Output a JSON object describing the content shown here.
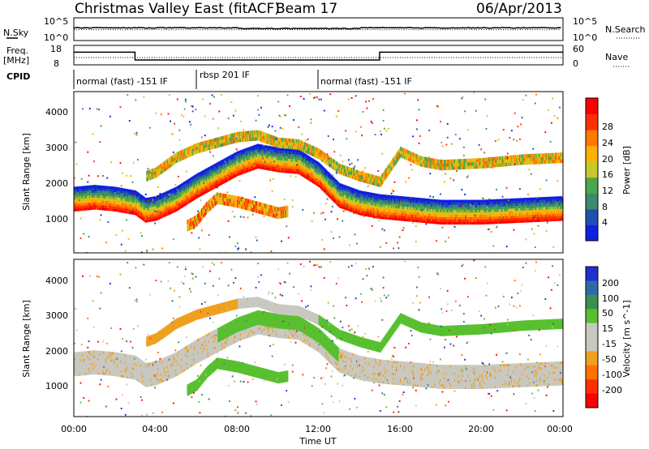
{
  "header": {
    "title": "Christmas Valley East (fitACF)",
    "beam": "Beam 17",
    "date": "06/Apr/2013"
  },
  "nsky_panel": {
    "left_label": "N.Sky",
    "right_label": "N.Search",
    "left_ticks": [
      "10^5",
      "10^0"
    ],
    "right_ticks": [
      "10^5",
      "10^0"
    ]
  },
  "freq_panel": {
    "left_label_1": "Freq.",
    "left_label_2": "[MHz]",
    "right_label": "Nave",
    "left_ticks": [
      "18",
      "8"
    ],
    "right_ticks": [
      "60",
      "0"
    ]
  },
  "cpid": {
    "label": "CPID",
    "segments": [
      {
        "text": "normal (fast) -151 IF",
        "start_hour": 0,
        "end_hour": 6
      },
      {
        "text": "rbsp 201 IF",
        "start_hour": 6,
        "end_hour": 12
      },
      {
        "text": "normal (fast) -151 IF",
        "start_hour": 12,
        "end_hour": 24
      }
    ]
  },
  "axes": {
    "ylabel": "Slant Range [km]",
    "xlabel": "Time UT",
    "y_ticks": [
      "1000",
      "2000",
      "3000",
      "4000"
    ],
    "x_ticks": [
      "00:00",
      "04:00",
      "08:00",
      "12:00",
      "16:00",
      "20:00",
      "00:00"
    ]
  },
  "power_colorbar": {
    "label": "Power [dB]",
    "ticks": [
      "4",
      "8",
      "12",
      "16",
      "20",
      "24",
      "28"
    ],
    "colors": [
      "#1020e0",
      "#2050b0",
      "#3a8a70",
      "#4ca64c",
      "#c8c828",
      "#ffb000",
      "#ff7800",
      "#ff3000",
      "#ff0000"
    ]
  },
  "velocity_colorbar": {
    "label": "Velocity [m s^-1]",
    "ticks": [
      "200",
      "100",
      "50",
      "15",
      "-15",
      "-50",
      "-100",
      "-200"
    ],
    "colors": [
      "#2030d0",
      "#2f6aa8",
      "#3d8f4f",
      "#58c030",
      "#c8c8c0",
      "#c8c8c0",
      "#f0a020",
      "#ff7000",
      "#ff3000",
      "#ff0000"
    ]
  },
  "chart_data": {
    "type": "heatmap",
    "x_range_hours": [
      0,
      24
    ],
    "y_range_km": [
      180,
      4500
    ],
    "nsky_level_log": 2.8,
    "nsearch_level_log": 2.4,
    "frequency_mhz": [
      {
        "start_hour": 0,
        "end_hour": 3,
        "value": 14.5
      },
      {
        "start_hour": 3,
        "end_hour": 15,
        "value": 10.5
      },
      {
        "start_hour": 15,
        "end_hour": 24,
        "value": 14.5
      }
    ],
    "power_bands": [
      {
        "name": "main",
        "points": [
          [
            0,
            1550
          ],
          [
            1,
            1600
          ],
          [
            2,
            1550
          ],
          [
            3,
            1450
          ],
          [
            3.5,
            1250
          ],
          [
            4,
            1300
          ],
          [
            5,
            1550
          ],
          [
            6,
            1900
          ],
          [
            7,
            2200
          ],
          [
            8,
            2500
          ],
          [
            9,
            2700
          ],
          [
            10,
            2600
          ],
          [
            11,
            2550
          ],
          [
            12,
            2200
          ],
          [
            13,
            1650
          ],
          [
            14,
            1450
          ],
          [
            15,
            1350
          ],
          [
            16,
            1300
          ],
          [
            18,
            1200
          ],
          [
            20,
            1200
          ],
          [
            22,
            1250
          ],
          [
            24,
            1300
          ]
        ]
      },
      {
        "name": "upper",
        "points": [
          [
            3.5,
            2200
          ],
          [
            4,
            2300
          ],
          [
            5,
            2700
          ],
          [
            6,
            2950
          ],
          [
            7,
            3100
          ],
          [
            8,
            3250
          ],
          [
            9,
            3300
          ],
          [
            10,
            3100
          ],
          [
            11,
            3050
          ],
          [
            12,
            2800
          ],
          [
            13,
            2400
          ],
          [
            14,
            2200
          ],
          [
            15,
            2050
          ],
          [
            16,
            2850
          ],
          [
            17,
            2600
          ],
          [
            18,
            2500
          ],
          [
            20,
            2550
          ],
          [
            22,
            2650
          ],
          [
            24,
            2700
          ]
        ]
      },
      {
        "name": "lower-island",
        "points": [
          [
            5.5,
            900
          ],
          [
            6,
            1050
          ],
          [
            6.5,
            1400
          ],
          [
            7,
            1650
          ],
          [
            8,
            1550
          ],
          [
            9,
            1400
          ],
          [
            10,
            1250
          ],
          [
            10.5,
            1300
          ]
        ]
      }
    ]
  }
}
